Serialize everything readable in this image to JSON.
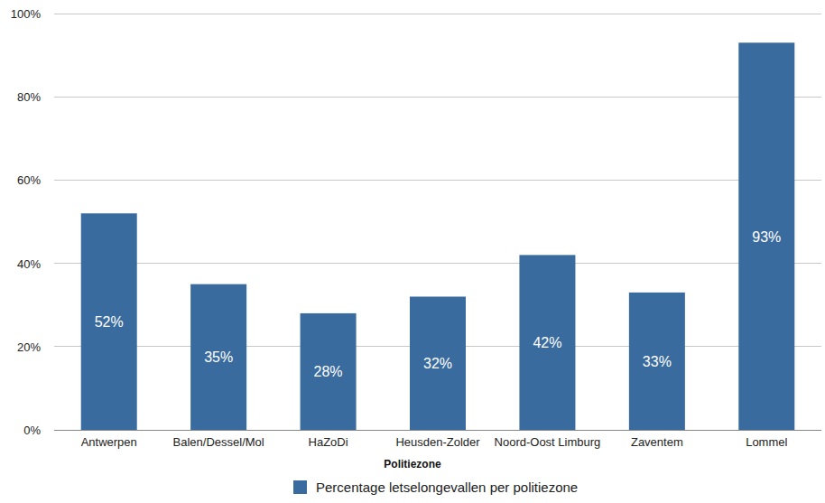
{
  "chart_data": {
    "type": "bar",
    "categories": [
      "Antwerpen",
      "Balen/Dessel/Mol",
      "HaZoDi",
      "Heusden-Zolder",
      "Noord-Oost Limburg",
      "Zaventem",
      "Lommel"
    ],
    "series": [
      {
        "name": "Percentage letselongevallen per politiezone",
        "color": "#3a6b9e",
        "values": [
          52,
          35,
          28,
          32,
          42,
          33,
          93
        ],
        "value_labels": [
          "52%",
          "35%",
          "28%",
          "32%",
          "42%",
          "33%",
          "93%"
        ]
      }
    ],
    "x_label": "Politiezone",
    "ylim": [
      0,
      100
    ],
    "yticks": [
      {
        "value": 0,
        "label": "0%"
      },
      {
        "value": 20,
        "label": "20%"
      },
      {
        "value": 40,
        "label": "40%"
      },
      {
        "value": 60,
        "label": "60%"
      },
      {
        "value": 80,
        "label": "80%"
      },
      {
        "value": 100,
        "label": "100%"
      }
    ],
    "grid": true,
    "legend": "bottom",
    "data_labels": true
  }
}
